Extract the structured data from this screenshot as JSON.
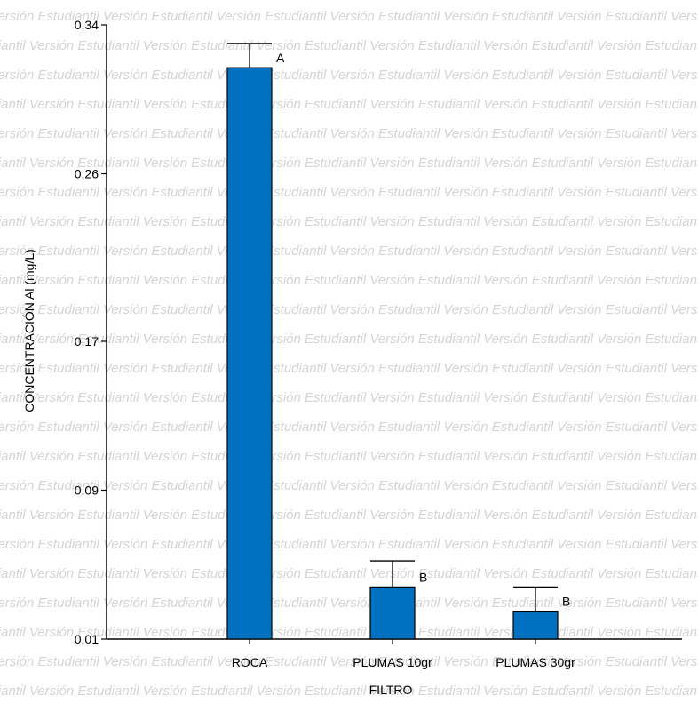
{
  "watermark": {
    "text": "Versión Estudiantil"
  },
  "chart_data": {
    "type": "bar",
    "title": "",
    "xlabel": "FILTRO",
    "ylabel": "CONCENTRACIÓN Al (mg/L)",
    "categories": [
      "ROCA",
      "PLUMAS 10gr",
      "PLUMAS 30gr"
    ],
    "values": [
      0.317,
      0.038,
      0.025
    ],
    "error_upper": [
      0.33,
      0.052,
      0.038
    ],
    "group_labels": [
      "A",
      "B",
      "B"
    ],
    "y_ticks": [
      "0,01",
      "0,09",
      "0,17",
      "0,26",
      "0,34"
    ],
    "y_tick_values": [
      0.01,
      0.09,
      0.17,
      0.26,
      0.34
    ],
    "ylim": [
      0.01,
      0.34
    ],
    "bar_color": "#0070C0",
    "grid": false,
    "legend": "none"
  }
}
